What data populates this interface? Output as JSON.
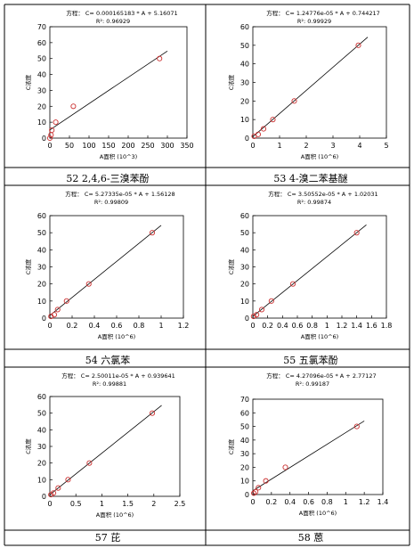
{
  "chart_data": [
    {
      "type": "scatter",
      "equation": "方程： C= 0.000165183 * A + 5.16071",
      "r2": "R²: 0.96929",
      "xlabel": "A面积 (10^3)",
      "ylabel": "C浓度",
      "xlim": [
        0,
        350
      ],
      "ylim": [
        0,
        70
      ],
      "xticks": [
        0,
        50,
        100,
        150,
        200,
        250,
        300,
        350
      ],
      "yticks": [
        0,
        10,
        20,
        30,
        40,
        50,
        60,
        70
      ],
      "points": {
        "x": [
          0,
          3,
          5,
          15,
          60,
          280
        ],
        "y": [
          0,
          2,
          5,
          10,
          20,
          50
        ]
      },
      "fit": {
        "x": [
          0,
          300
        ],
        "y": [
          5.16,
          54.7
        ]
      },
      "caption": ""
    },
    {
      "type": "scatter",
      "equation": "方程： C= 1.24776e-05 * A + 0.744217",
      "r2": "R²: 0.99929",
      "xlabel": "A面积 (10^6)",
      "ylabel": "C浓度",
      "xlim": [
        0,
        5
      ],
      "ylim": [
        0,
        60
      ],
      "xticks": [
        0,
        1,
        2,
        3,
        4,
        5
      ],
      "yticks": [
        0,
        10,
        20,
        30,
        40,
        50,
        60
      ],
      "points": {
        "x": [
          0.05,
          0.2,
          0.4,
          0.75,
          1.55,
          3.95
        ],
        "y": [
          1,
          2,
          5,
          10,
          20,
          50
        ]
      },
      "fit": {
        "x": [
          0,
          4.3
        ],
        "y": [
          0.74,
          54.4
        ]
      },
      "caption": "52   2,4,6-三溴苯酚"
    },
    {
      "type": "scatter",
      "equation": "方程： C= 5.27335e-05 * A + 1.56128",
      "r2": "R²: 0.99809",
      "xlabel": "A面积 (10^6)",
      "ylabel": "C浓度",
      "xlim": [
        0,
        1.2
      ],
      "ylim": [
        0,
        60
      ],
      "xticks": [
        "0",
        "0.2",
        "0.4",
        "0.6",
        "0.8",
        "1",
        "1.2"
      ],
      "yticks": [
        0,
        10,
        20,
        30,
        40,
        50,
        60
      ],
      "points": {
        "x": [
          0.01,
          0.04,
          0.07,
          0.15,
          0.35,
          0.92
        ],
        "y": [
          1,
          2,
          5,
          10,
          20,
          50
        ]
      },
      "fit": {
        "x": [
          0,
          1.0
        ],
        "y": [
          1.56,
          54.3
        ]
      },
      "caption": "53   4-溴二苯基醚"
    },
    {
      "type": "scatter",
      "equation": "方程： C= 3.50552e-05 * A + 1.02031",
      "r2": "R²: 0.99874",
      "xlabel": "A面积 (10^6)",
      "ylabel": "C浓度",
      "xlim": [
        0,
        1.8
      ],
      "ylim": [
        0,
        60
      ],
      "xticks": [
        "0",
        "0.2",
        "0.4",
        "0.6",
        "0.8",
        "1",
        "1.2",
        "1.4",
        "1.6",
        "1.8"
      ],
      "yticks": [
        0,
        10,
        20,
        30,
        40,
        50,
        60
      ],
      "points": {
        "x": [
          0.01,
          0.05,
          0.12,
          0.25,
          0.54,
          1.4
        ],
        "y": [
          1,
          2,
          5,
          10,
          20,
          50
        ]
      },
      "fit": {
        "x": [
          0,
          1.53
        ],
        "y": [
          1.02,
          54.6
        ]
      },
      "caption": ""
    },
    {
      "type": "scatter",
      "equation": "方程： C= 2.50011e-05 * A + 0.939641",
      "r2": "R²: 0.99881",
      "xlabel": "A面积 (10^6)",
      "ylabel": "C浓度",
      "xlim": [
        0,
        2.5
      ],
      "ylim": [
        0,
        60
      ],
      "xticks": [
        "0",
        "0.5",
        "1",
        "1.5",
        "2",
        "2.5"
      ],
      "yticks": [
        0,
        10,
        20,
        30,
        40,
        50,
        60
      ],
      "points": {
        "x": [
          0.02,
          0.07,
          0.16,
          0.35,
          0.76,
          1.97
        ],
        "y": [
          1,
          2,
          5,
          10,
          20,
          50
        ]
      },
      "fit": {
        "x": [
          0,
          2.15
        ],
        "y": [
          0.94,
          54.7
        ]
      },
      "caption": "54 六氯苯"
    },
    {
      "type": "scatter",
      "equation": "方程： C= 4.27096e-05 * A + 2.77127",
      "r2": "R²: 0.99187",
      "xlabel": "A面积 (10^6)",
      "ylabel": "C浓度",
      "xlim": [
        0,
        1.4
      ],
      "ylim": [
        0,
        70
      ],
      "xticks": [
        "0",
        "0.2",
        "0.4",
        "0.6",
        "0.8",
        "1",
        "1.2",
        "1.4"
      ],
      "yticks": [
        0,
        10,
        20,
        30,
        40,
        50,
        60,
        70
      ],
      "points": {
        "x": [
          0.01,
          0.03,
          0.06,
          0.14,
          0.35,
          1.12
        ],
        "y": [
          1,
          2,
          5,
          10,
          20,
          50
        ]
      },
      "fit": {
        "x": [
          0,
          1.2
        ],
        "y": [
          2.77,
          54.0
        ]
      },
      "caption": "55 五氯苯酚"
    }
  ],
  "bottom_captions": [
    "57 芘",
    "58 蒽"
  ],
  "colors": {
    "point": "#cc3333",
    "line": "#000000",
    "border": "#000000"
  }
}
